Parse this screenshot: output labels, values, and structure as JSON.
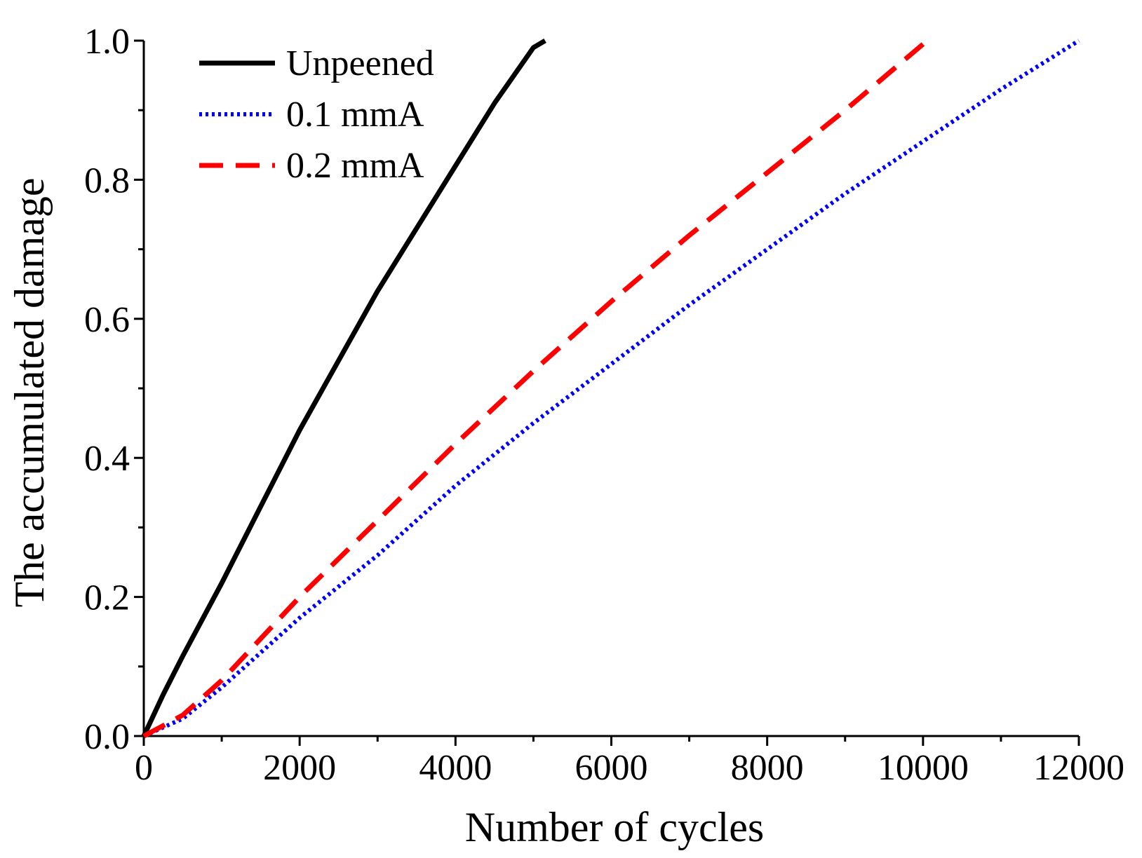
{
  "chart_data": {
    "type": "line",
    "title": "",
    "xlabel": "Number of cycles",
    "ylabel": "The accumulated damage",
    "xlim": [
      0,
      12000
    ],
    "ylim": [
      0,
      1.0
    ],
    "x_ticks": [
      0,
      2000,
      4000,
      6000,
      8000,
      10000,
      12000
    ],
    "x_tick_labels": [
      "0",
      "2000",
      "4000",
      "6000",
      "8000",
      "10000",
      "12000"
    ],
    "x_minor_ticks": [
      1000,
      3000,
      5000,
      7000,
      9000,
      11000
    ],
    "y_ticks": [
      0.0,
      0.2,
      0.4,
      0.6,
      0.8,
      1.0
    ],
    "y_tick_labels": [
      "0.0",
      "0.2",
      "0.4",
      "0.6",
      "0.8",
      "1.0"
    ],
    "y_minor_ticks": [
      0.1,
      0.3,
      0.5,
      0.7,
      0.9
    ],
    "grid": false,
    "legend_position": "top-left",
    "series": [
      {
        "name": "Unpeened",
        "color": "#000000",
        "style": "solid",
        "x": [
          0,
          250,
          500,
          1000,
          1500,
          2000,
          2500,
          3000,
          3500,
          4000,
          4500,
          5000,
          5150
        ],
        "y": [
          0,
          0.06,
          0.115,
          0.22,
          0.33,
          0.44,
          0.54,
          0.64,
          0.73,
          0.82,
          0.91,
          0.99,
          1.0
        ]
      },
      {
        "name": "0.1 mmA",
        "color": "#0000ff",
        "style": "dotted",
        "x": [
          0,
          500,
          1000,
          2000,
          3000,
          4000,
          5000,
          6000,
          7000,
          8000,
          9000,
          10000,
          11000,
          12000
        ],
        "y": [
          0,
          0.025,
          0.07,
          0.17,
          0.26,
          0.36,
          0.45,
          0.535,
          0.62,
          0.7,
          0.78,
          0.855,
          0.93,
          1.0
        ]
      },
      {
        "name": "0.2 mmA",
        "color": "#ff0000",
        "style": "dashed",
        "x": [
          0,
          500,
          1000,
          2000,
          3000,
          4000,
          5000,
          6000,
          7000,
          8000,
          9000,
          10000
        ],
        "y": [
          0,
          0.03,
          0.08,
          0.2,
          0.31,
          0.42,
          0.525,
          0.625,
          0.72,
          0.81,
          0.9,
          0.995
        ]
      }
    ]
  }
}
